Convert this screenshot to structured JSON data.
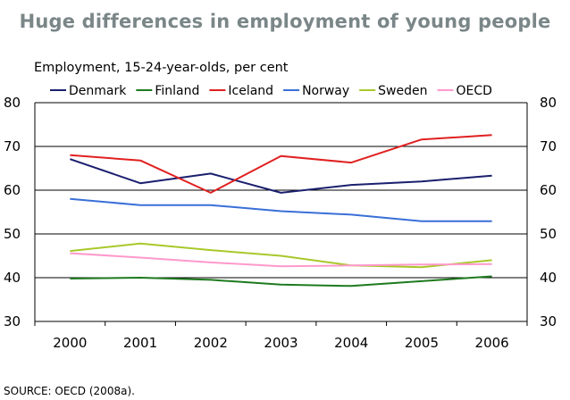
{
  "chart_data": {
    "type": "line",
    "title": "Huge differences in employment of young people",
    "subtitle": "Employment, 15-24-year-olds, per cent",
    "source": "SOURCE:  OECD (2008a).",
    "categories": [
      "2000",
      "2001",
      "2002",
      "2003",
      "2004",
      "2005",
      "2006"
    ],
    "ylim": [
      30,
      80
    ],
    "yticks": [
      30,
      40,
      50,
      60,
      70,
      80
    ],
    "grid": true,
    "series": [
      {
        "name": "Denmark",
        "color": "#1a1f6e",
        "values": [
          67.1,
          61.6,
          63.8,
          59.4,
          61.2,
          62.0,
          63.3
        ]
      },
      {
        "name": "Finland",
        "color": "#1e7a1e",
        "values": [
          39.8,
          40.0,
          39.5,
          38.4,
          38.1,
          39.2,
          40.3
        ]
      },
      {
        "name": "Iceland",
        "color": "#e02020",
        "values": [
          68.0,
          66.8,
          59.4,
          67.8,
          66.3,
          71.6,
          72.6
        ]
      },
      {
        "name": "Norway",
        "color": "#3a6fd8",
        "values": [
          58.0,
          56.6,
          56.6,
          55.2,
          54.4,
          52.9,
          52.9
        ]
      },
      {
        "name": "Sweden",
        "color": "#a8c82a",
        "values": [
          46.1,
          47.8,
          46.3,
          45.0,
          42.8,
          42.4,
          44.0
        ]
      },
      {
        "name": "OECD",
        "color": "#ff99cc",
        "values": [
          45.6,
          44.6,
          43.5,
          42.6,
          42.8,
          43.0,
          43.1
        ]
      }
    ]
  }
}
